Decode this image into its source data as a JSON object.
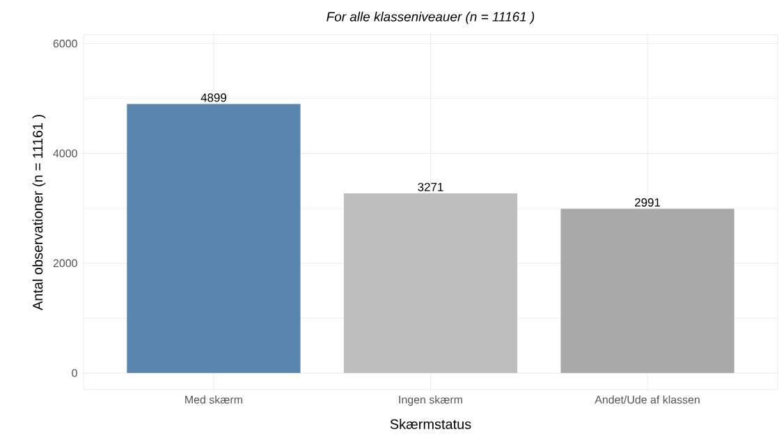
{
  "chart_data": {
    "type": "bar",
    "title": "For alle klasseniveauer (n = 11161 )",
    "xlabel": "Skærmstatus",
    "ylabel": "Antal observationer (n = 11161 )",
    "categories": [
      "Med skærm",
      "Ingen skærm",
      "Andet/Ude af klassen"
    ],
    "values": [
      4899,
      3271,
      2991
    ],
    "colors": [
      "#5a86ad",
      "#bebebe",
      "#a8a8a8"
    ],
    "ylim": [
      -300,
      6160
    ],
    "yticks": [
      0,
      2000,
      4000,
      6000
    ],
    "grid": true,
    "data_labels": true
  }
}
